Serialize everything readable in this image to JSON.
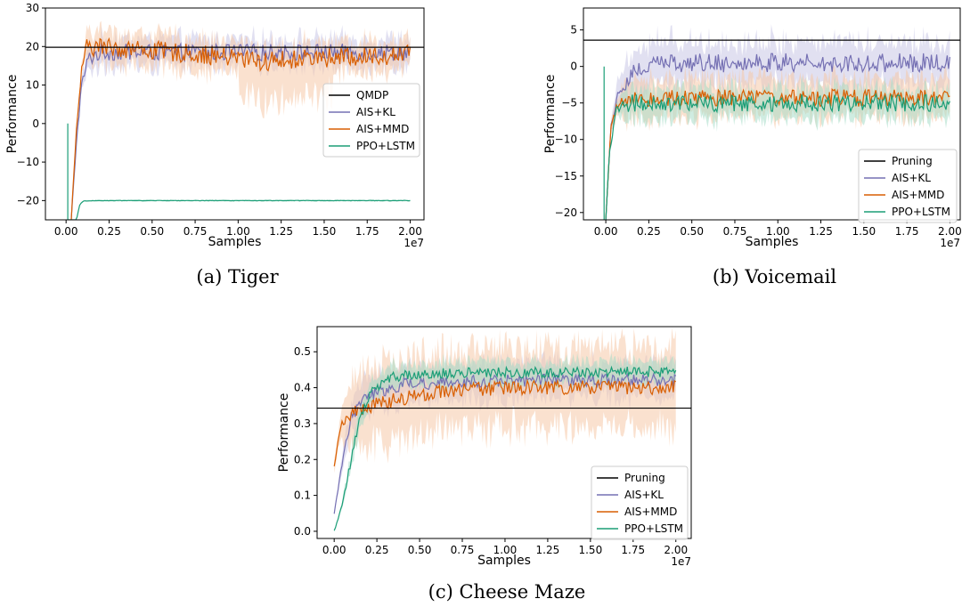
{
  "colors": {
    "baseline": "#000000",
    "ais_kl": "#7570b3",
    "ais_mmd": "#d95f02",
    "ppo_lstm": "#1b9e77",
    "ais_kl_band": "#c9c7e6",
    "ais_mmd_band": "#f6c9a7",
    "ppo_lstm_band": "#a8ddc8"
  },
  "chart_data": [
    {
      "type": "line",
      "caption": "(a) Tiger",
      "xlabel": "Samples",
      "ylabel": "Performance",
      "x_offset_label": "1e7",
      "xlim": [
        -0.12,
        2.08
      ],
      "ylim": [
        -25,
        30
      ],
      "xticks": [
        "0.00",
        "0.25",
        "0.50",
        "0.75",
        "1.00",
        "1.25",
        "1.50",
        "1.75",
        "2.00"
      ],
      "yticks": [
        "-20",
        "-10",
        "0",
        "10",
        "20",
        "30"
      ],
      "legend_position": "center-right",
      "series": [
        {
          "name": "QMDP",
          "key": "baseline",
          "kind": "hline",
          "y": 19.8
        },
        {
          "name": "AIS+KL",
          "key": "ais_kl",
          "kind": "noisy",
          "points": [
            [
              0.03,
              -25
            ],
            [
              0.06,
              -5
            ],
            [
              0.09,
              10
            ],
            [
              0.13,
              17
            ],
            [
              0.2,
              18.5
            ],
            [
              0.5,
              18.5
            ],
            [
              1.0,
              18.5
            ],
            [
              1.5,
              18.5
            ],
            [
              2.0,
              18.5
            ]
          ],
          "noise": 2.2,
          "band": 3.5
        },
        {
          "name": "AIS+MMD",
          "key": "ais_mmd",
          "kind": "noisy",
          "points": [
            [
              0.03,
              -25
            ],
            [
              0.06,
              -2
            ],
            [
              0.09,
              14
            ],
            [
              0.12,
              20
            ],
            [
              0.2,
              20
            ],
            [
              0.5,
              19
            ],
            [
              1.0,
              17
            ],
            [
              1.1,
              16
            ],
            [
              1.5,
              17
            ],
            [
              2.0,
              18
            ]
          ],
          "noise": 2.5,
          "band": 4,
          "band_bumps": [
            {
              "x0": 1.0,
              "x1": 1.55,
              "extra": 8
            }
          ]
        },
        {
          "name": "PPO+LSTM",
          "key": "ppo_lstm",
          "kind": "noisy",
          "points": [
            [
              0.01,
              -25
            ],
            [
              0.06,
              -25
            ],
            [
              0.08,
              -21
            ],
            [
              0.1,
              -20.1
            ],
            [
              0.2,
              -20
            ],
            [
              2.0,
              -20
            ]
          ],
          "noise": 0.05,
          "band": 0.2,
          "spikes": [
            [
              0.01,
              0
            ]
          ]
        }
      ]
    },
    {
      "type": "line",
      "caption": "(b) Voicemail",
      "xlabel": "Samples",
      "ylabel": "Performance",
      "x_offset_label": "1e7",
      "xlim": [
        -0.13,
        2.06
      ],
      "ylim": [
        -21,
        8
      ],
      "xticks": [
        "0.00",
        "0.25",
        "0.50",
        "0.75",
        "1.00",
        "1.25",
        "1.50",
        "1.75",
        "2.00"
      ],
      "yticks": [
        "-20",
        "-15",
        "-10",
        "-5",
        "0",
        "5"
      ],
      "legend_position": "lower-right",
      "series": [
        {
          "name": "Pruning",
          "key": "baseline",
          "kind": "hline",
          "y": 3.6
        },
        {
          "name": "AIS+KL",
          "key": "ais_kl",
          "kind": "noisy",
          "points": [
            [
              0.0,
              -21
            ],
            [
              0.03,
              -8
            ],
            [
              0.08,
              -3
            ],
            [
              0.15,
              -1
            ],
            [
              0.3,
              0.5
            ],
            [
              1.0,
              0.5
            ],
            [
              2.0,
              0.5
            ]
          ],
          "noise": 1.3,
          "band": 3
        },
        {
          "name": "AIS+MMD",
          "key": "ais_mmd",
          "kind": "noisy",
          "points": [
            [
              0.0,
              -21
            ],
            [
              0.03,
              -8
            ],
            [
              0.08,
              -4.5
            ],
            [
              0.2,
              -4.3
            ],
            [
              2.0,
              -4.3
            ]
          ],
          "noise": 1.2,
          "band": 2.5
        },
        {
          "name": "PPO+LSTM",
          "key": "ppo_lstm",
          "kind": "noisy",
          "points": [
            [
              0.0,
              -21
            ],
            [
              0.02,
              -12
            ],
            [
              0.06,
              -6
            ],
            [
              0.15,
              -5
            ],
            [
              2.0,
              -5
            ]
          ],
          "noise": 1.2,
          "band": 2,
          "spikes": [
            [
              -0.01,
              0
            ]
          ]
        }
      ]
    },
    {
      "type": "line",
      "caption": "(c) Cheese Maze",
      "xlabel": "Samples",
      "ylabel": "Performance",
      "x_offset_label": "1e7",
      "xlim": [
        -0.1,
        2.09
      ],
      "ylim": [
        -0.02,
        0.57
      ],
      "xticks": [
        "0.00",
        "0.25",
        "0.50",
        "0.75",
        "1.00",
        "1.25",
        "1.50",
        "1.75",
        "2.00"
      ],
      "yticks": [
        "0.0",
        "0.1",
        "0.2",
        "0.3",
        "0.4",
        "0.5"
      ],
      "legend_position": "lower-right",
      "series": [
        {
          "name": "Pruning",
          "key": "baseline",
          "kind": "hline",
          "y": 0.343
        },
        {
          "name": "AIS+KL",
          "key": "ais_kl",
          "kind": "noisy",
          "points": [
            [
              0.0,
              0.05
            ],
            [
              0.05,
              0.2
            ],
            [
              0.1,
              0.32
            ],
            [
              0.2,
              0.38
            ],
            [
              0.4,
              0.41
            ],
            [
              1.0,
              0.42
            ],
            [
              2.0,
              0.42
            ]
          ],
          "noise": 0.018,
          "band": 0.05
        },
        {
          "name": "AIS+MMD",
          "key": "ais_mmd",
          "kind": "noisy",
          "points": [
            [
              0.0,
              0.18
            ],
            [
              0.04,
              0.3
            ],
            [
              0.15,
              0.34
            ],
            [
              0.3,
              0.36
            ],
            [
              0.6,
              0.39
            ],
            [
              1.0,
              0.4
            ],
            [
              2.0,
              0.4
            ]
          ],
          "noise": 0.02,
          "band": 0.11
        },
        {
          "name": "PPO+LSTM",
          "key": "ppo_lstm",
          "kind": "noisy",
          "points": [
            [
              0.0,
              0.0
            ],
            [
              0.05,
              0.08
            ],
            [
              0.1,
              0.2
            ],
            [
              0.15,
              0.32
            ],
            [
              0.22,
              0.39
            ],
            [
              0.35,
              0.43
            ],
            [
              0.6,
              0.44
            ],
            [
              2.0,
              0.445
            ]
          ],
          "noise": 0.015,
          "band": 0.03
        }
      ]
    }
  ]
}
